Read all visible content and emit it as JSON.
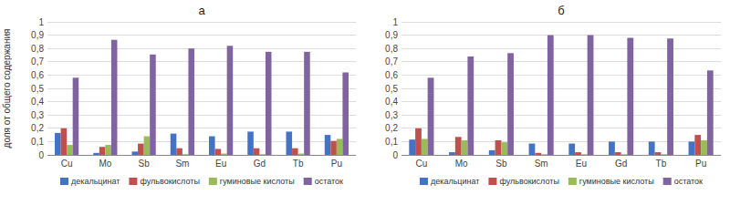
{
  "chart_data": [
    {
      "type": "bar",
      "title": "а",
      "categories": [
        "Cu",
        "Mo",
        "Sb",
        "Sm",
        "Eu",
        "Gd",
        "Tb",
        "Pu"
      ],
      "series": [
        {
          "name": "декальцинат",
          "color": "#4472c4",
          "values": [
            0.165,
            0.015,
            0.025,
            0.16,
            0.14,
            0.175,
            0.175,
            0.15
          ]
        },
        {
          "name": "фульвокислоты",
          "color": "#c0504d",
          "values": [
            0.2,
            0.06,
            0.085,
            0.05,
            0.045,
            0.05,
            0.05,
            0.105
          ]
        },
        {
          "name": "гуминовые кислоты",
          "color": "#9bbb59",
          "values": [
            0.075,
            0.075,
            0.14,
            0.005,
            0.01,
            0.005,
            0.01,
            0.12
          ]
        },
        {
          "name": "остаток",
          "color": "#8064a2",
          "values": [
            0.58,
            0.865,
            0.755,
            0.8,
            0.82,
            0.775,
            0.775,
            0.62
          ]
        }
      ],
      "ylabel": "доля от общего содержания",
      "ylim": [
        0,
        1
      ],
      "yticks": [
        0,
        {
          "value": 0.1,
          "label": "0,1"
        },
        {
          "value": 0.2,
          "label": "0,2"
        },
        {
          "value": 0.3,
          "label": "0,3"
        },
        {
          "value": 0.4,
          "label": "0,4"
        },
        {
          "value": 0.5,
          "label": "0,5"
        },
        {
          "value": 0.6,
          "label": "0,6"
        },
        {
          "value": 0.7,
          "label": "0,7"
        },
        {
          "value": 0.8,
          "label": "0,8"
        },
        {
          "value": 0.9,
          "label": "0,9"
        },
        1
      ],
      "grid": true,
      "legend": "bottom"
    },
    {
      "type": "bar",
      "title": "б",
      "categories": [
        "Cu",
        "Mo",
        "Sb",
        "Sm",
        "Eu",
        "Gd",
        "Tb",
        "Pu"
      ],
      "series": [
        {
          "name": "декальцинат",
          "color": "#4472c4",
          "values": [
            0.115,
            0.02,
            0.035,
            0.085,
            0.085,
            0.1,
            0.1,
            0.1
          ]
        },
        {
          "name": "фульвокислоты",
          "color": "#c0504d",
          "values": [
            0.2,
            0.135,
            0.11,
            0.015,
            0.02,
            0.02,
            0.02,
            0.15
          ]
        },
        {
          "name": "гуминовые кислоты",
          "color": "#9bbb59",
          "values": [
            0.12,
            0.11,
            0.095,
            0.005,
            0.005,
            0.005,
            0.005,
            0.11
          ]
        },
        {
          "name": "остаток",
          "color": "#8064a2",
          "values": [
            0.58,
            0.74,
            0.765,
            0.9,
            0.9,
            0.88,
            0.875,
            0.635
          ]
        }
      ],
      "ylim": [
        0,
        1
      ],
      "yticks": [
        0,
        {
          "value": 0.1,
          "label": "0,1"
        },
        {
          "value": 0.2,
          "label": "0,2"
        },
        {
          "value": 0.3,
          "label": "0,3"
        },
        {
          "value": 0.4,
          "label": "0,4"
        },
        {
          "value": 0.5,
          "label": "0,5"
        },
        {
          "value": 0.6,
          "label": "0,6"
        },
        {
          "value": 0.7,
          "label": "0,7"
        },
        {
          "value": 0.8,
          "label": "0,8"
        },
        {
          "value": 0.9,
          "label": "0,9"
        },
        1
      ],
      "grid": true,
      "legend": "bottom"
    }
  ]
}
